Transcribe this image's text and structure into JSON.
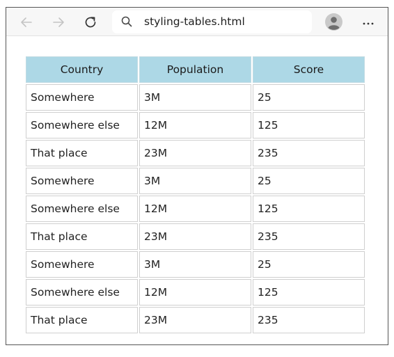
{
  "browser": {
    "url": "styling-tables.html",
    "icons": {
      "back": "arrow-left-icon",
      "forward": "arrow-right-icon",
      "reload": "reload-icon",
      "search": "search-icon",
      "profile": "profile-avatar-icon",
      "menu": "more-dots-icon"
    }
  },
  "table": {
    "header_color": "#add8e6",
    "headers": [
      "Country",
      "Population",
      "Score"
    ],
    "rows": [
      [
        "Somewhere",
        "3M",
        "25"
      ],
      [
        "Somewhere else",
        "12M",
        "125"
      ],
      [
        "That place",
        "23M",
        "235"
      ],
      [
        "Somewhere",
        "3M",
        "25"
      ],
      [
        "Somewhere else",
        "12M",
        "125"
      ],
      [
        "That place",
        "23M",
        "235"
      ],
      [
        "Somewhere",
        "3M",
        "25"
      ],
      [
        "Somewhere else",
        "12M",
        "125"
      ],
      [
        "That place",
        "23M",
        "235"
      ]
    ]
  }
}
